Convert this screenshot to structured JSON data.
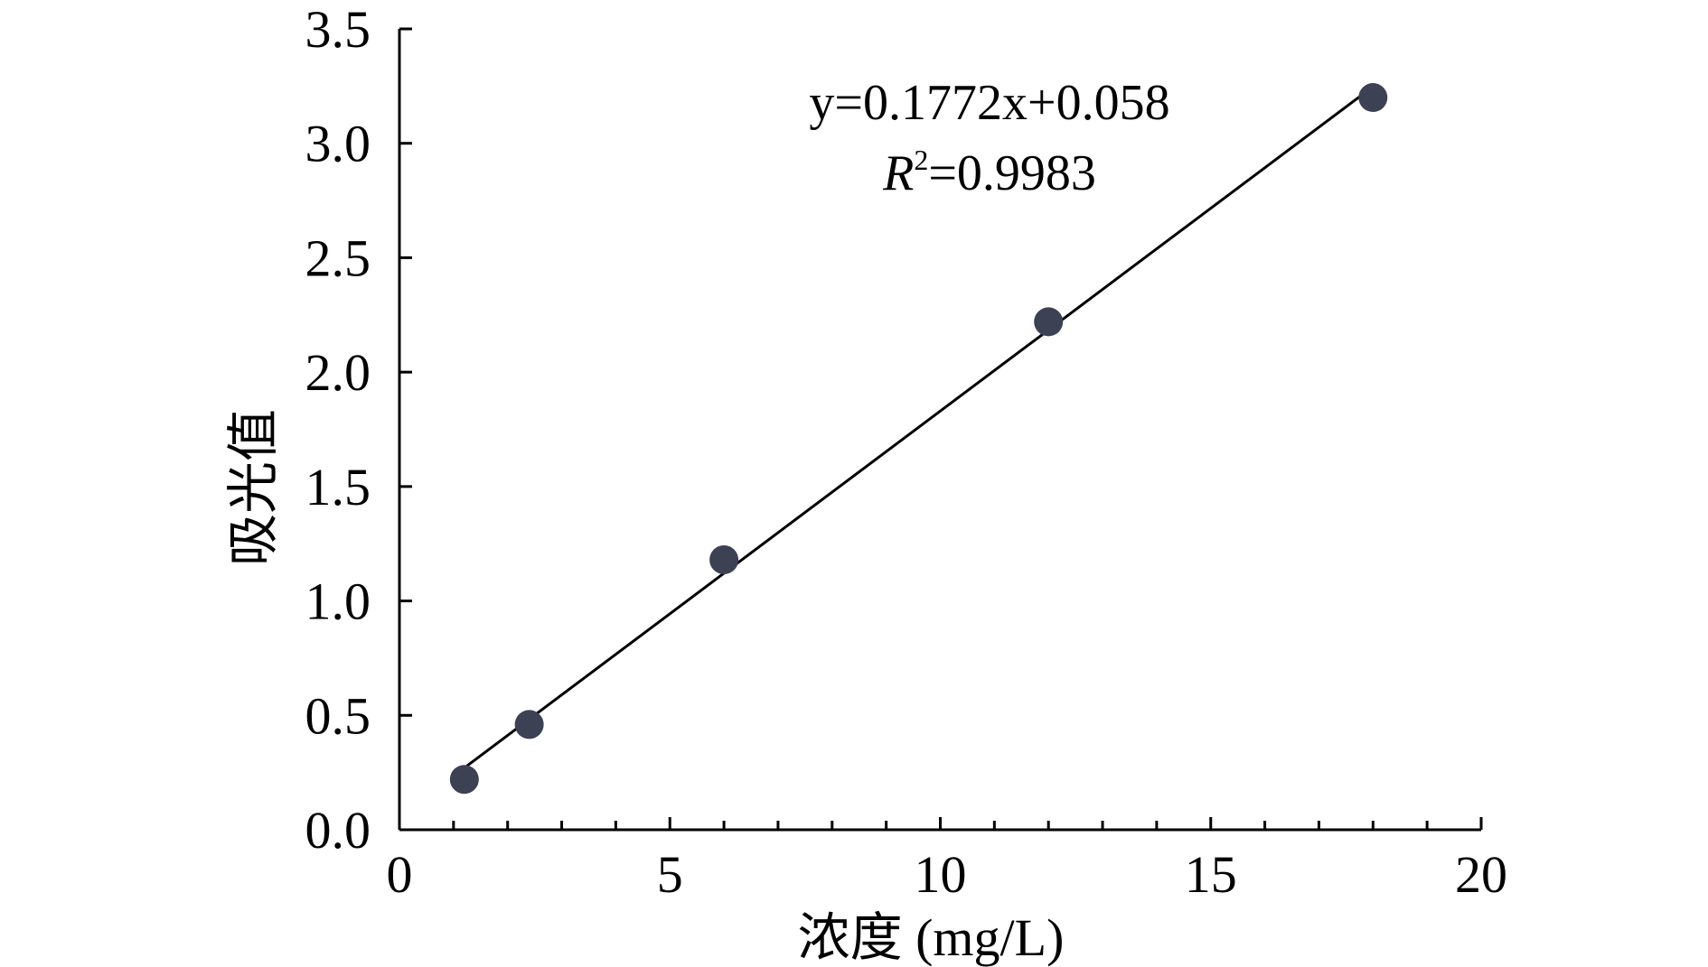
{
  "chart_data": {
    "type": "scatter",
    "title": "",
    "xlabel": "浓度 (mg/L)",
    "ylabel": "吸光值",
    "xlim": [
      0,
      20
    ],
    "ylim": [
      0,
      3.5
    ],
    "x_ticks": [
      "0",
      "5",
      "10",
      "15",
      "20"
    ],
    "y_ticks": [
      "0.0",
      "0.5",
      "1.0",
      "1.5",
      "2.0",
      "2.5",
      "3.0",
      "3.5"
    ],
    "grid": false,
    "legend": "none",
    "series": [
      {
        "points": [
          {
            "x": 1.2,
            "y": 0.22
          },
          {
            "x": 2.4,
            "y": 0.46
          },
          {
            "x": 6.0,
            "y": 1.18
          },
          {
            "x": 12.0,
            "y": 2.22
          },
          {
            "x": 18.0,
            "y": 3.2
          }
        ],
        "marker_color": "#3c4154"
      }
    ],
    "trendline": {
      "slope": 0.1772,
      "intercept": 0.058,
      "x_range": [
        1.2,
        18.0
      ],
      "color": "#000000"
    },
    "annotations": {
      "equation": "y=0.1772x+0.058",
      "r2_symbol": "R",
      "r2_power": "2",
      "r2_value": "=0.9983"
    }
  }
}
